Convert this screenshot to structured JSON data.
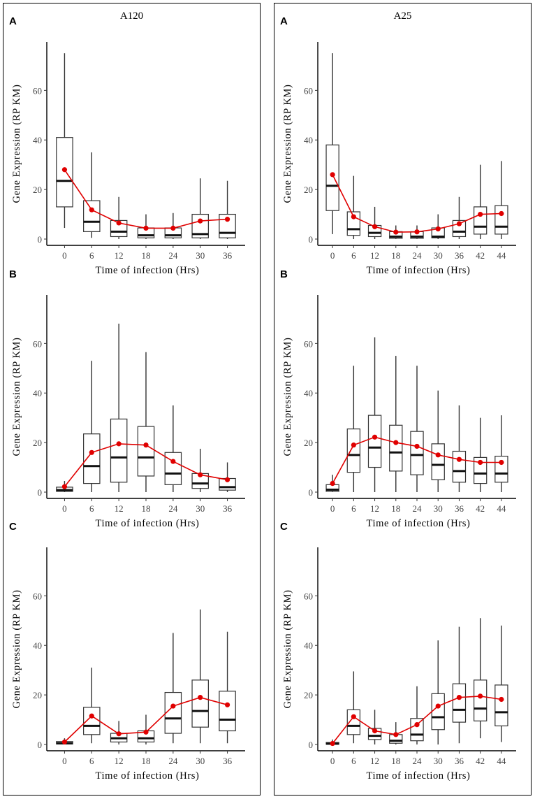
{
  "chart_data": [
    {
      "panel_title": "A120",
      "rows": [
        {
          "letter": "A",
          "type": "box",
          "ylabel": "Gene Expression (RP KM)",
          "xlabel": "Time of infection (Hrs)",
          "categories": [
            "0",
            "6",
            "12",
            "18",
            "24",
            "30",
            "36"
          ],
          "boxes": [
            {
              "whislo": 4.5,
              "q1": 13,
              "med": 23.5,
              "q3": 41,
              "whishi": 75
            },
            {
              "whislo": 0.5,
              "q1": 3,
              "med": 7,
              "q3": 15.5,
              "whishi": 35
            },
            {
              "whislo": 0,
              "q1": 1,
              "med": 3,
              "q3": 7.5,
              "whishi": 17
            },
            {
              "whislo": 0,
              "q1": 0.5,
              "med": 1.5,
              "q3": 4.5,
              "whishi": 10
            },
            {
              "whislo": 0,
              "q1": 0.5,
              "med": 1.5,
              "q3": 4.5,
              "whishi": 10.5
            },
            {
              "whislo": 0,
              "q1": 0.5,
              "med": 2,
              "q3": 10,
              "whishi": 24.5
            },
            {
              "whislo": 0,
              "q1": 0.5,
              "med": 2.5,
              "q3": 10,
              "whishi": 23.5
            }
          ],
          "means": [
            28,
            11.8,
            6.5,
            4.4,
            4.4,
            7.3,
            8
          ],
          "ylim": [
            0,
            80
          ],
          "yticks": [
            0,
            20,
            40,
            60
          ]
        },
        {
          "letter": "B",
          "type": "box",
          "ylabel": "Gene Expression (RP KM)",
          "xlabel": "Time of infection (Hrs)",
          "categories": [
            "0",
            "6",
            "12",
            "18",
            "24",
            "30",
            "36"
          ],
          "boxes": [
            {
              "whislo": 0,
              "q1": 0.3,
              "med": 0.8,
              "q3": 2,
              "whishi": 4.5
            },
            {
              "whislo": 0,
              "q1": 3.5,
              "med": 10.5,
              "q3": 23.5,
              "whishi": 53
            },
            {
              "whislo": 0,
              "q1": 4,
              "med": 14,
              "q3": 29.5,
              "whishi": 68
            },
            {
              "whislo": 0,
              "q1": 6.5,
              "med": 14,
              "q3": 26.5,
              "whishi": 56.5
            },
            {
              "whislo": 0,
              "q1": 3,
              "med": 7.5,
              "q3": 16,
              "whishi": 35
            },
            {
              "whislo": 0,
              "q1": 1.5,
              "med": 3.5,
              "q3": 7.5,
              "whishi": 17.5
            },
            {
              "whislo": 0,
              "q1": 0.8,
              "med": 2,
              "q3": 5.5,
              "whishi": 12
            }
          ],
          "means": [
            2.2,
            16,
            19.5,
            19,
            12.4,
            7,
            5
          ],
          "ylim": [
            0,
            80
          ],
          "yticks": [
            0,
            20,
            40,
            60
          ]
        },
        {
          "letter": "C",
          "type": "box",
          "ylabel": "Gene Expression (RP KM)",
          "xlabel": "Time of infection (Hrs)",
          "categories": [
            "0",
            "6",
            "12",
            "18",
            "24",
            "30",
            "36"
          ],
          "boxes": [
            {
              "whislo": 0,
              "q1": 0.2,
              "med": 0.5,
              "q3": 1.2,
              "whishi": 2.5
            },
            {
              "whislo": 0.5,
              "q1": 4,
              "med": 7.5,
              "q3": 15,
              "whishi": 31
            },
            {
              "whislo": 0,
              "q1": 1,
              "med": 2.5,
              "q3": 4.5,
              "whishi": 9.5
            },
            {
              "whislo": 0,
              "q1": 1,
              "med": 2.5,
              "q3": 5.5,
              "whishi": 12
            },
            {
              "whislo": 0.5,
              "q1": 4.5,
              "med": 10.5,
              "q3": 21,
              "whishi": 45
            },
            {
              "whislo": 0.5,
              "q1": 7,
              "med": 13.5,
              "q3": 26,
              "whishi": 54.5
            },
            {
              "whislo": 0.5,
              "q1": 5.5,
              "med": 10,
              "q3": 21.5,
              "whishi": 45.5
            }
          ],
          "means": [
            1,
            11.5,
            4.3,
            5,
            15.5,
            19,
            16
          ],
          "ylim": [
            0,
            80
          ],
          "yticks": [
            0,
            20,
            40,
            60
          ]
        }
      ]
    },
    {
      "panel_title": "A25",
      "rows": [
        {
          "letter": "A",
          "type": "box",
          "ylabel": "Gene Expression (RP KM)",
          "xlabel": "Time of infection (Hrs)",
          "categories": [
            "0",
            "6",
            "12",
            "18",
            "24",
            "30",
            "36",
            "42",
            "44"
          ],
          "boxes": [
            {
              "whislo": 2,
              "q1": 11.5,
              "med": 21.5,
              "q3": 38,
              "whishi": 75
            },
            {
              "whislo": 0,
              "q1": 1.5,
              "med": 4,
              "q3": 11,
              "whishi": 25.5
            },
            {
              "whislo": 0,
              "q1": 1,
              "med": 2.5,
              "q3": 5.5,
              "whishi": 13
            },
            {
              "whislo": 0,
              "q1": 0.3,
              "med": 1,
              "q3": 3,
              "whishi": 5.5
            },
            {
              "whislo": 0,
              "q1": 0.3,
              "med": 1,
              "q3": 3,
              "whishi": 5.5
            },
            {
              "whislo": 0,
              "q1": 0.5,
              "med": 1,
              "q3": 4.5,
              "whishi": 10
            },
            {
              "whislo": 0,
              "q1": 1,
              "med": 3,
              "q3": 7.5,
              "whishi": 17
            },
            {
              "whislo": 0,
              "q1": 2,
              "med": 5,
              "q3": 13,
              "whishi": 30
            },
            {
              "whislo": 0,
              "q1": 2,
              "med": 5,
              "q3": 13.5,
              "whishi": 31.5
            }
          ],
          "means": [
            26,
            9,
            5,
            2.8,
            2.9,
            4.1,
            6.2,
            10,
            10.3
          ],
          "ylim": [
            0,
            80
          ],
          "yticks": [
            0,
            20,
            40,
            60
          ]
        },
        {
          "letter": "B",
          "type": "box",
          "ylabel": "Gene Expression (RP KM)",
          "xlabel": "Time of infection (Hrs)",
          "categories": [
            "0",
            "6",
            "12",
            "18",
            "24",
            "30",
            "36",
            "42",
            "44"
          ],
          "boxes": [
            {
              "whislo": 0,
              "q1": 0.3,
              "med": 1,
              "q3": 3,
              "whishi": 7
            },
            {
              "whislo": 0,
              "q1": 8,
              "med": 15,
              "q3": 25.5,
              "whishi": 51
            },
            {
              "whislo": 0,
              "q1": 10,
              "med": 18,
              "q3": 31,
              "whishi": 62.5
            },
            {
              "whislo": 0,
              "q1": 8.5,
              "med": 16,
              "q3": 27,
              "whishi": 55
            },
            {
              "whislo": 0,
              "q1": 7,
              "med": 15,
              "q3": 24.5,
              "whishi": 51
            },
            {
              "whislo": 0,
              "q1": 5,
              "med": 11,
              "q3": 19.5,
              "whishi": 41
            },
            {
              "whislo": 0,
              "q1": 4,
              "med": 8.5,
              "q3": 16.5,
              "whishi": 35
            },
            {
              "whislo": 0,
              "q1": 3.5,
              "med": 7.5,
              "q3": 14,
              "whishi": 30
            },
            {
              "whislo": 0,
              "q1": 4,
              "med": 7.5,
              "q3": 14.5,
              "whishi": 31
            }
          ],
          "means": [
            3.5,
            19,
            22.2,
            20,
            18.5,
            15,
            13.2,
            12,
            12
          ],
          "ylim": [
            0,
            80
          ],
          "yticks": [
            0,
            20,
            40,
            60
          ]
        },
        {
          "letter": "C",
          "type": "box",
          "ylabel": "Gene Expression (RP KM)",
          "xlabel": "Time of infection (Hrs)",
          "categories": [
            "0",
            "6",
            "12",
            "18",
            "24",
            "30",
            "36",
            "42",
            "44"
          ],
          "boxes": [
            {
              "whislo": 0,
              "q1": 0.1,
              "med": 0.3,
              "q3": 0.8,
              "whishi": 2
            },
            {
              "whislo": 0.5,
              "q1": 4,
              "med": 7.5,
              "q3": 14,
              "whishi": 29.5
            },
            {
              "whislo": 0,
              "q1": 2,
              "med": 3.5,
              "q3": 6.5,
              "whishi": 14
            },
            {
              "whislo": 0,
              "q1": 0.5,
              "med": 1.5,
              "q3": 4,
              "whishi": 9
            },
            {
              "whislo": 0,
              "q1": 1.5,
              "med": 4,
              "q3": 10.5,
              "whishi": 23.5
            },
            {
              "whislo": 0,
              "q1": 6,
              "med": 11,
              "q3": 20.5,
              "whishi": 42
            },
            {
              "whislo": 0.5,
              "q1": 9,
              "med": 14,
              "q3": 24.5,
              "whishi": 47.5
            },
            {
              "whislo": 2.5,
              "q1": 9.5,
              "med": 14.5,
              "q3": 26,
              "whishi": 51
            },
            {
              "whislo": 1,
              "q1": 7.5,
              "med": 13,
              "q3": 24,
              "whishi": 48
            }
          ],
          "means": [
            0.4,
            11.2,
            5.5,
            4,
            8,
            15.5,
            19,
            19.5,
            18.2
          ],
          "ylim": [
            0,
            80
          ],
          "yticks": [
            0,
            20,
            40,
            60
          ]
        }
      ]
    }
  ]
}
